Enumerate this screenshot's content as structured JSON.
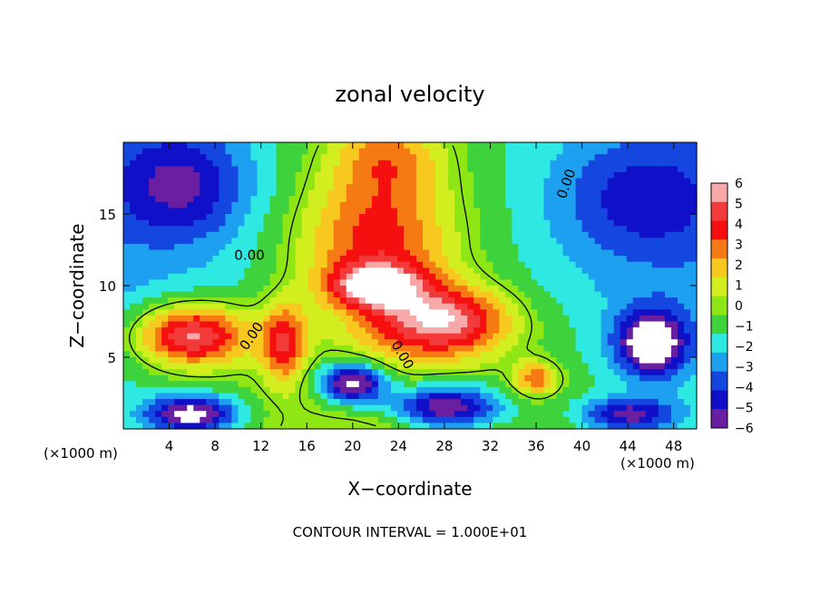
{
  "chart_data": {
    "type": "heatmap",
    "title": "zonal velocity",
    "xlabel": "X−coordinate",
    "ylabel": "Z−coordinate",
    "x_unit": "(×1000 m)",
    "y_unit": "(×1000 m)",
    "xlim": [
      0,
      50
    ],
    "ylim": [
      0,
      20
    ],
    "x_ticks": [
      4,
      8,
      12,
      16,
      20,
      24,
      28,
      32,
      36,
      40,
      44,
      48
    ],
    "y_ticks": [
      5,
      10,
      15
    ],
    "footer": "CONTOUR INTERVAL = 1.000E+01",
    "contour_label": "0.00",
    "colorbar": {
      "levels": [
        6,
        5,
        4,
        3,
        2,
        1,
        0,
        -1,
        -2,
        -3,
        -4,
        -5,
        -6
      ],
      "labels": [
        "6",
        "5",
        "4",
        "3",
        "2",
        "1",
        "0",
        "−1",
        "−2",
        "−3",
        "−4",
        "−5",
        "−6"
      ],
      "colors": [
        "#f7a8a8",
        "#f23a3a",
        "#f50f0f",
        "#f57a14",
        "#f7c81e",
        "#d2ee1e",
        "#8ee614",
        "#3ed23c",
        "#2ee8e2",
        "#1ea0f0",
        "#1446e0",
        "#1010c8",
        "#6a1ea0"
      ]
    },
    "field_features": [
      {
        "kind": "background",
        "value": -2.5,
        "note": "upper-left cyan/blue"
      },
      {
        "kind": "blob",
        "x": 22,
        "z": 13,
        "sx": 7,
        "sz": 5,
        "value": 4.5
      },
      {
        "kind": "blob",
        "x": 23,
        "z": 19,
        "sx": 5,
        "sz": 3,
        "value": 3
      },
      {
        "kind": "blob",
        "x": 6,
        "z": 6.5,
        "sx": 5,
        "sz": 2.2,
        "value": 7
      },
      {
        "kind": "blob",
        "x": 28,
        "z": 7.5,
        "sx": 6,
        "sz": 2.5,
        "value": 6.5
      },
      {
        "kind": "blob",
        "x": 22,
        "z": 10,
        "sx": 4,
        "sz": 1.5,
        "value": 6
      },
      {
        "kind": "blob",
        "x": 14,
        "z": 6,
        "sx": 2,
        "sz": 2.8,
        "value": 5
      },
      {
        "kind": "blob",
        "x": 36,
        "z": 3.5,
        "sx": 2,
        "sz": 1.2,
        "value": 4
      },
      {
        "kind": "blob",
        "x": 20,
        "z": 3.2,
        "sx": 3,
        "sz": 1.4,
        "value": -7
      },
      {
        "kind": "blob",
        "x": 6,
        "z": 1,
        "sx": 4,
        "sz": 1.3,
        "value": -6.5
      },
      {
        "kind": "blob",
        "x": 28,
        "z": 1.5,
        "sx": 5,
        "sz": 1.6,
        "value": -6.5
      },
      {
        "kind": "blob",
        "x": 46,
        "z": 6,
        "sx": 3,
        "sz": 2.2,
        "value": -7
      },
      {
        "kind": "blob",
        "x": 44,
        "z": 1,
        "sx": 4,
        "sz": 1.2,
        "value": -5
      },
      {
        "kind": "blob",
        "x": 45,
        "z": 16,
        "sx": 7,
        "sz": 4,
        "value": -3
      },
      {
        "kind": "blob",
        "x": 5,
        "z": 17,
        "sx": 6,
        "sz": 4,
        "value": -4
      }
    ]
  }
}
